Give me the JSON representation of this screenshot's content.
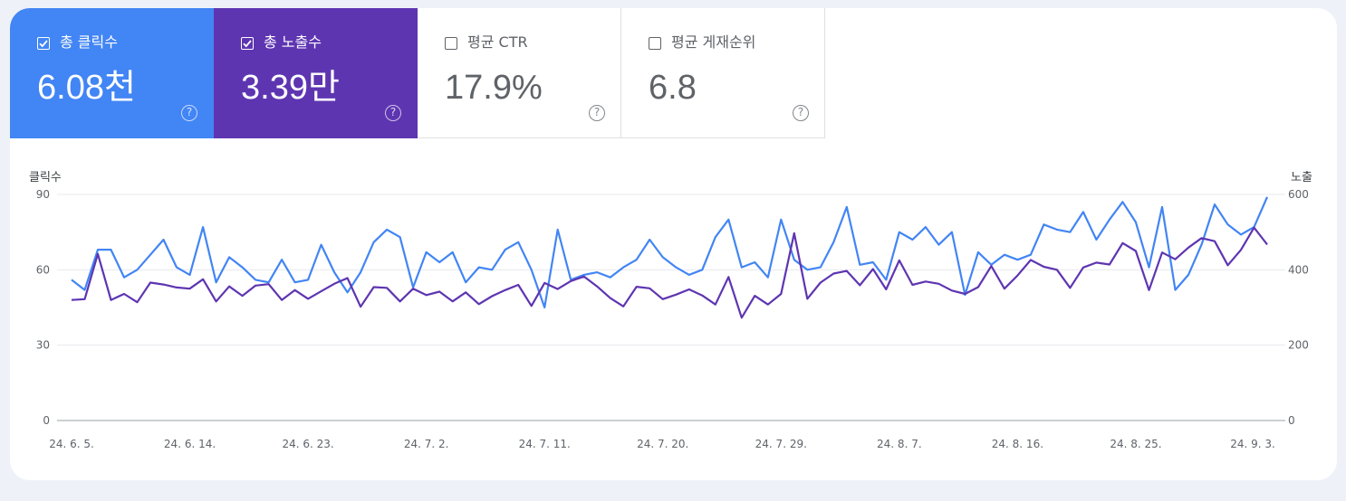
{
  "metrics": [
    {
      "label": "총 클릭수",
      "value": "6.08천",
      "checked": true
    },
    {
      "label": "총 노출수",
      "value": "3.39만",
      "checked": true
    },
    {
      "label": "평균 CTR",
      "value": "17.9%",
      "checked": false
    },
    {
      "label": "평균 게재순위",
      "value": "6.8",
      "checked": false
    }
  ],
  "help_glyph": "?",
  "colors": {
    "clicks": "#4285f4",
    "impressions": "#5e35b1",
    "grid": "#e8eaed"
  },
  "chart_data": {
    "type": "line",
    "y_left_label": "클릭수",
    "y_right_label": "노출",
    "y_left_ticks": [
      "0",
      "30",
      "60",
      "90"
    ],
    "y_right_ticks": [
      "0",
      "200",
      "400",
      "600"
    ],
    "ylim_left": [
      0,
      90
    ],
    "ylim_right": [
      0,
      600
    ],
    "x_tick_labels": [
      "24. 6. 5.",
      "24. 6. 14.",
      "24. 6. 23.",
      "24. 7. 2.",
      "24. 7. 11.",
      "24. 7. 20.",
      "24. 7. 29.",
      "24. 8. 7.",
      "24. 8. 16.",
      "24. 8. 25.",
      "24. 9. 3."
    ],
    "grid": true,
    "series": [
      {
        "name": "총 클릭수",
        "axis": "left",
        "values": [
          56,
          52,
          68,
          68,
          57,
          60,
          66,
          72,
          61,
          58,
          77,
          55,
          65,
          61,
          56,
          55,
          64,
          55,
          56,
          70,
          59,
          51,
          59,
          71,
          76,
          73,
          53,
          67,
          63,
          67,
          55,
          61,
          60,
          68,
          71,
          60,
          45,
          76,
          56,
          58,
          59,
          57,
          61,
          64,
          72,
          65,
          61,
          58,
          60,
          73,
          80,
          61,
          63,
          57,
          80,
          64,
          60,
          61,
          71,
          85,
          62,
          63,
          56,
          75,
          72,
          77,
          70,
          75,
          50,
          67,
          62,
          66,
          64,
          66,
          78,
          76,
          75,
          83,
          72,
          80,
          87,
          79,
          61,
          85,
          52,
          58,
          70,
          86,
          78,
          74,
          77,
          89
        ]
      },
      {
        "name": "총 노출수",
        "axis": "right",
        "values": [
          320,
          322,
          442,
          320,
          336,
          314,
          366,
          361,
          353,
          350,
          375,
          316,
          356,
          331,
          358,
          362,
          320,
          346,
          323,
          343,
          363,
          378,
          302,
          354,
          352,
          316,
          350,
          333,
          342,
          316,
          340,
          309,
          330,
          346,
          360,
          304,
          365,
          349,
          370,
          382,
          356,
          325,
          303,
          355,
          351,
          322,
          334,
          348,
          332,
          308,
          381,
          273,
          331,
          308,
          336,
          497,
          323,
          366,
          390,
          397,
          359,
          402,
          348,
          425,
          360,
          369,
          363,
          345,
          336,
          354,
          410,
          350,
          385,
          426,
          408,
          400,
          352,
          406,
          419,
          414,
          471,
          450,
          346,
          446,
          428,
          459,
          484,
          476,
          412,
          453,
          512,
          467
        ]
      }
    ]
  }
}
